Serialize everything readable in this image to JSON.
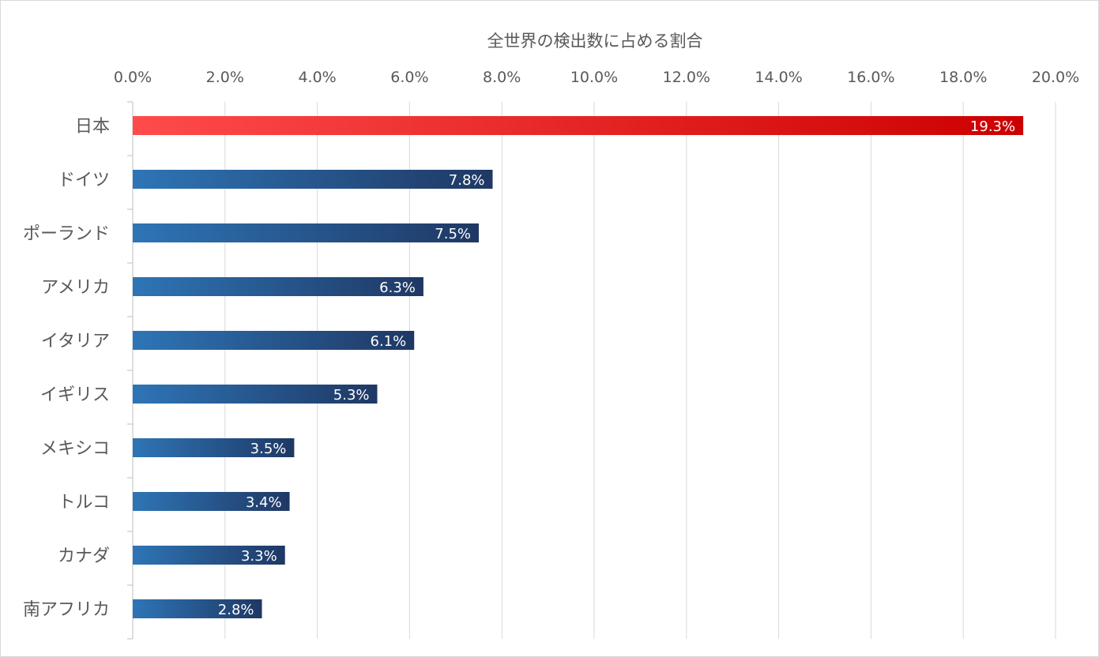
{
  "chart_data": {
    "type": "bar",
    "orientation": "horizontal",
    "title": "",
    "xlabel": "全世界の検出数に占める割合",
    "ylabel": "",
    "x_axis_position": "top",
    "xlim": [
      0,
      20
    ],
    "x_ticks": [
      0,
      2,
      4,
      6,
      8,
      10,
      12,
      14,
      16,
      18,
      20
    ],
    "x_tick_labels": [
      "0.0%",
      "2.0%",
      "4.0%",
      "6.0%",
      "8.0%",
      "10.0%",
      "12.0%",
      "14.0%",
      "16.0%",
      "18.0%",
      "20.0%"
    ],
    "grid": true,
    "legend": "none",
    "categories": [
      "日本",
      "ドイツ",
      "ポーランド",
      "アメリカ",
      "イタリア",
      "イギリス",
      "メキシコ",
      "トルコ",
      "カナダ",
      "南アフリカ"
    ],
    "values": [
      19.3,
      7.8,
      7.5,
      6.3,
      6.1,
      5.3,
      3.5,
      3.4,
      3.3,
      2.8
    ],
    "data_labels": [
      "19.3%",
      "7.8%",
      "7.5%",
      "6.3%",
      "6.1%",
      "5.3%",
      "3.5%",
      "3.4%",
      "3.3%",
      "2.8%"
    ],
    "highlight_category": "日本",
    "colors": {
      "highlight_start": "#ff4b4b",
      "highlight_end": "#cc0000",
      "bar_start": "#2e75b6",
      "bar_end": "#1f3864",
      "label_text": "#ffffff",
      "axis_text": "#595959",
      "gridline": "#d9d9d9"
    }
  }
}
